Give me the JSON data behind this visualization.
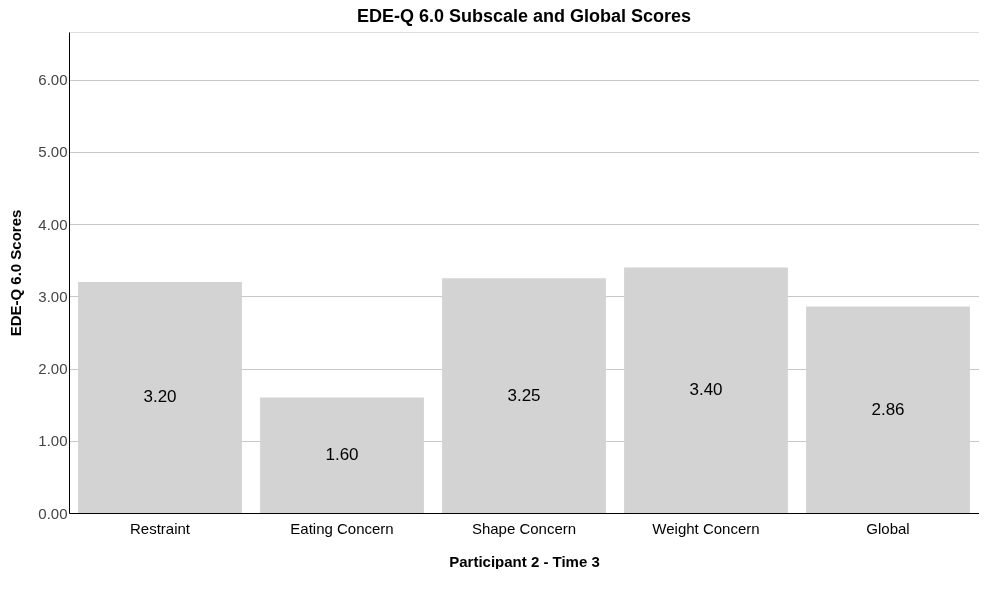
{
  "chart_data": {
    "type": "bar",
    "title": "EDE-Q 6.0 Subscale and Global Scores",
    "xlabel": "Participant 2 - Time 3",
    "ylabel": "EDE-Q 6.0 Scores",
    "categories": [
      "Restraint",
      "Eating Concern",
      "Shape Concern",
      "Weight Concern",
      "Global"
    ],
    "values": [
      3.2,
      1.6,
      3.25,
      3.4,
      2.86
    ],
    "value_labels": [
      "3.20",
      "1.60",
      "3.25",
      "3.40",
      "2.86"
    ],
    "color": "#d3d3d3",
    "ylim": [
      0,
      6.66
    ],
    "yticks": [
      {
        "value": 0,
        "label": "0.00"
      },
      {
        "value": 1,
        "label": "1.00"
      },
      {
        "value": 2,
        "label": "2.00"
      },
      {
        "value": 3,
        "label": "3.00"
      },
      {
        "value": 4,
        "label": "4.00"
      },
      {
        "value": 5,
        "label": "5.00"
      },
      {
        "value": 6,
        "label": "6.00"
      }
    ],
    "grid": "y"
  }
}
